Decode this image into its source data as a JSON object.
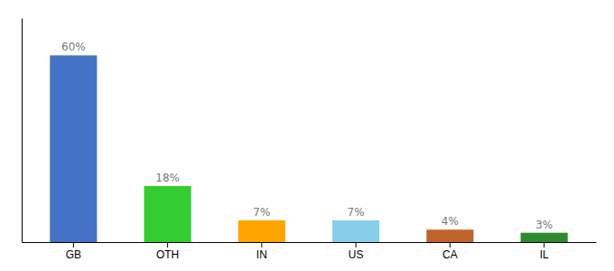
{
  "chart_data": {
    "type": "bar",
    "categories": [
      "GB",
      "OTH",
      "IN",
      "US",
      "CA",
      "IL"
    ],
    "values": [
      60,
      18,
      7,
      7,
      4,
      3
    ],
    "value_labels": [
      "60%",
      "18%",
      "7%",
      "7%",
      "4%",
      "3%"
    ],
    "colors": [
      "#4472C4",
      "#33CC33",
      "#FFA500",
      "#87CEEB",
      "#C0632A",
      "#2D8A2D"
    ],
    "ylim": [
      0,
      72
    ],
    "grid": false,
    "data_labels": true,
    "tick_labels": "x"
  }
}
